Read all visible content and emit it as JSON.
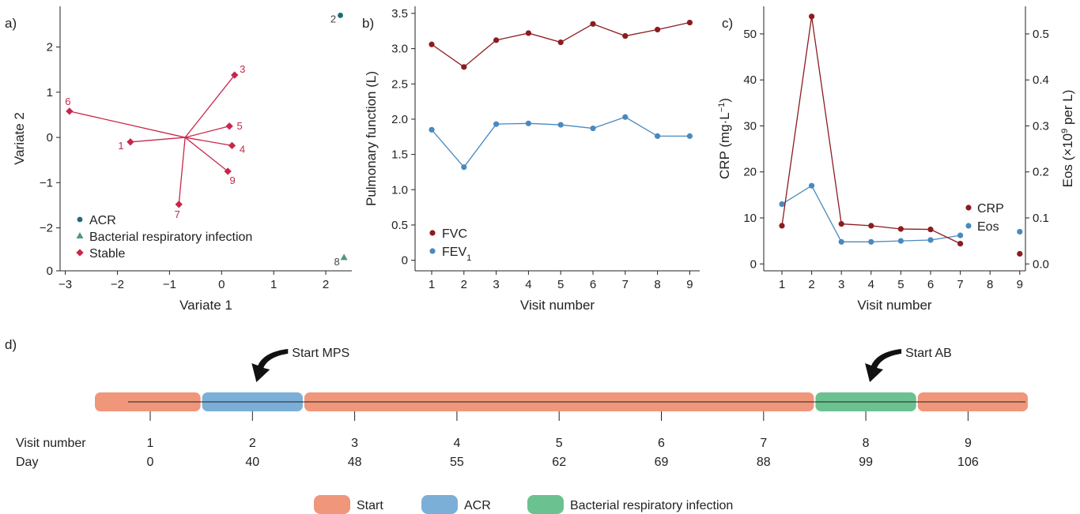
{
  "panel_labels": {
    "a": "a)",
    "b": "b)",
    "c": "c)",
    "d": "d)"
  },
  "colors": {
    "acr_teal": "#1d6a7d",
    "bacterial_green": "#4f9a7a",
    "stable_red": "#c8274a",
    "fvc_dark_red": "#8b1c1f",
    "fev_blue": "#4a89bd",
    "timeline_start": "#f0967a",
    "timeline_acr": "#7bafd7",
    "timeline_bacterial": "#6cc191"
  },
  "chart_data": [
    {
      "id": "a",
      "type": "scatter",
      "xlabel": "Variate 1",
      "ylabel": "Variate 2",
      "xlim": [
        -3.1,
        2.5
      ],
      "ylim": [
        -2.95,
        2.9
      ],
      "xticks": [
        -3,
        -2,
        -1,
        0,
        1,
        2
      ],
      "xtick_labels": [
        "−3",
        "−2",
        "−1",
        "0",
        "1",
        "2"
      ],
      "yticks": [
        -2,
        -1,
        0,
        1,
        2
      ],
      "ytick_labels": [
        "−2",
        "−1",
        "0",
        "1",
        "2"
      ],
      "origin_label": "0",
      "centroid": [
        -0.7,
        0.0
      ],
      "points": [
        {
          "label": "1",
          "x": -1.75,
          "y": -0.1,
          "group": "Stable"
        },
        {
          "label": "2",
          "x": 2.28,
          "y": 2.7,
          "group": "ACR"
        },
        {
          "label": "3",
          "x": 0.25,
          "y": 1.38,
          "group": "Stable"
        },
        {
          "label": "4",
          "x": 0.2,
          "y": -0.18,
          "group": "Stable"
        },
        {
          "label": "5",
          "x": 0.15,
          "y": 0.25,
          "group": "Stable"
        },
        {
          "label": "6",
          "x": -2.92,
          "y": 0.58,
          "group": "Stable"
        },
        {
          "label": "7",
          "x": -0.82,
          "y": -1.48,
          "group": "Stable"
        },
        {
          "label": "8",
          "x": 2.35,
          "y": -2.65,
          "group": "Bacterial respiratory infection"
        },
        {
          "label": "9",
          "x": 0.12,
          "y": -0.75,
          "group": "Stable"
        }
      ],
      "legend": [
        "ACR",
        "Bacterial respiratory infection",
        "Stable"
      ]
    },
    {
      "id": "b",
      "type": "line",
      "xlabel": "Visit number",
      "ylabel": "Pulmonary function (L)",
      "x": [
        1,
        2,
        3,
        4,
        5,
        6,
        7,
        8,
        9
      ],
      "ylim": [
        -0.15,
        3.6
      ],
      "yticks": [
        0,
        0.5,
        1.0,
        1.5,
        2.0,
        2.5,
        3.0,
        3.5
      ],
      "ytick_labels": [
        "0",
        "0.5",
        "1.0",
        "1.5",
        "2.0",
        "2.5",
        "3.0",
        "3.5"
      ],
      "series": [
        {
          "name": "FVC",
          "values": [
            3.06,
            2.74,
            3.12,
            3.22,
            3.09,
            3.35,
            3.18,
            3.27,
            3.37
          ]
        },
        {
          "name": "FEV1",
          "name_main": "FEV",
          "name_sub": "1",
          "values": [
            1.85,
            1.32,
            1.93,
            1.94,
            1.92,
            1.87,
            2.03,
            1.76,
            1.76
          ]
        }
      ]
    },
    {
      "id": "c",
      "type": "line",
      "xlabel": "Visit number",
      "ylabel_left_pre": "CRP (mg·L",
      "ylabel_left_sup": "−1",
      "ylabel_left_post": ")",
      "ylabel_right_pre": "Eos (×10",
      "ylabel_right_sup": "9",
      "ylabel_right_post": " per L)",
      "x": [
        1,
        2,
        3,
        4,
        5,
        6,
        7,
        8,
        9
      ],
      "ylim_left": [
        -1.5,
        56
      ],
      "yticks_left": [
        0,
        10,
        20,
        30,
        40,
        50
      ],
      "ylim_right": [
        -0.015,
        0.56
      ],
      "yticks_right": [
        0.0,
        0.1,
        0.2,
        0.3,
        0.4,
        0.5
      ],
      "ytick_labels_right": [
        "0.0",
        "0.1",
        "0.2",
        "0.3",
        "0.4",
        "0.5"
      ],
      "series": [
        {
          "name": "CRP",
          "axis": "left",
          "values": [
            8.3,
            53.8,
            8.7,
            8.3,
            7.6,
            7.5,
            4.4,
            null,
            2.2
          ]
        },
        {
          "name": "Eos",
          "axis": "right",
          "values": [
            0.13,
            0.17,
            0.048,
            0.048,
            0.05,
            0.052,
            0.062,
            null,
            0.07
          ]
        }
      ]
    }
  ],
  "timeline": {
    "visit_row_label": "Visit number",
    "day_row_label": "Day",
    "visits": [
      "1",
      "2",
      "3",
      "4",
      "5",
      "6",
      "7",
      "8",
      "9"
    ],
    "days": [
      "0",
      "40",
      "48",
      "55",
      "62",
      "69",
      "88",
      "99",
      "106"
    ],
    "segments": [
      {
        "state": "Start",
        "from_visit": 0.35,
        "to_visit": 1.5
      },
      {
        "state": "ACR",
        "from_visit": 1.5,
        "to_visit": 2.5
      },
      {
        "state": "Start",
        "from_visit": 2.5,
        "to_visit": 7.5
      },
      {
        "state": "Bacterial respiratory infection",
        "from_visit": 7.5,
        "to_visit": 8.5
      },
      {
        "state": "Start",
        "from_visit": 8.5,
        "to_visit": 9.5
      }
    ],
    "annotations": [
      {
        "text": "Start MPS",
        "at_visit": 2
      },
      {
        "text": "Start AB",
        "at_visit": 8
      }
    ],
    "legend": [
      {
        "label": "Start",
        "state": "Start"
      },
      {
        "label": "ACR",
        "state": "ACR"
      },
      {
        "label": "Bacterial respiratory infection",
        "state": "Bacterial respiratory infection"
      }
    ]
  }
}
